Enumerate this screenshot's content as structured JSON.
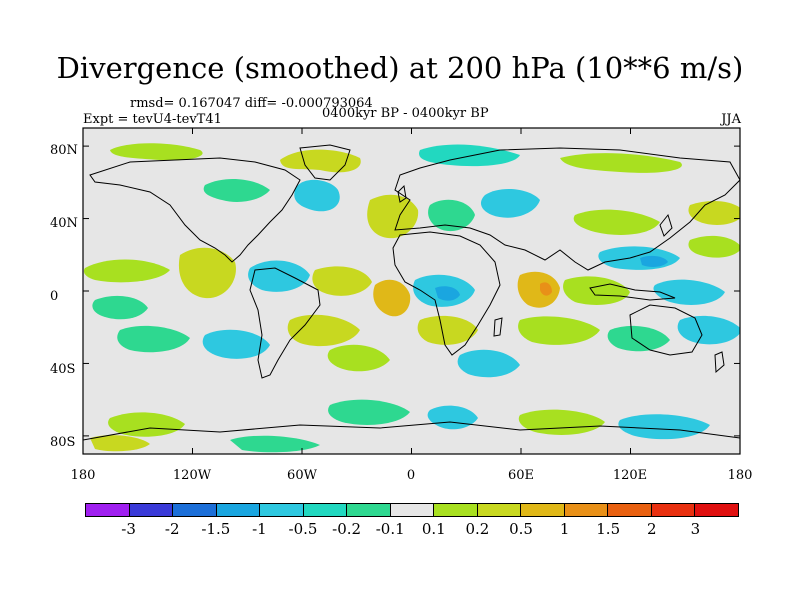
{
  "title": "Divergence (smoothed) at 200 hPa (10**6 m/s)",
  "stats": "rmsd= 0.167047 diff= -0.000793064",
  "expt": "Expt = tevU4-tevT41",
  "period": "0400kyr BP - 0400kyr BP",
  "season": "JJA",
  "map": {
    "lon_range": [
      -180,
      180
    ],
    "lat_range": [
      -90,
      90
    ],
    "projection": "cylindrical equidistant",
    "y_ticks": [
      "80N",
      "40N",
      "0",
      "40S",
      "80S"
    ],
    "x_ticks": [
      "180",
      "120W",
      "60W",
      "0",
      "60E",
      "120E",
      "180"
    ]
  },
  "colorbar": {
    "levels": [
      "-3",
      "-2",
      "-1.5",
      "-1",
      "-0.5",
      "-0.2",
      "-0.1",
      "0.1",
      "0.2",
      "0.5",
      "1",
      "1.5",
      "2",
      "3"
    ],
    "colors": [
      "#a020f0",
      "#3a3ad8",
      "#1c6fd8",
      "#1aa6e0",
      "#2ec8e0",
      "#22d8c0",
      "#2ed890",
      "#e6e6e6",
      "#a8e020",
      "#c8d820",
      "#e0b818",
      "#e89018",
      "#e86010",
      "#e83010",
      "#e01010"
    ]
  },
  "chart_data": {
    "type": "heatmap",
    "title": "Divergence (smoothed) at 200 hPa (10**6 m/s)",
    "x_unit": "longitude (deg)",
    "y_unit": "latitude (deg)",
    "xlim": [
      -180,
      180
    ],
    "ylim": [
      -90,
      90
    ],
    "levels": [
      -3,
      -2,
      -1.5,
      -1,
      -0.5,
      -0.2,
      -0.1,
      0.1,
      0.2,
      0.5,
      1,
      1.5,
      2,
      3
    ],
    "features": [
      {
        "lon": -100,
        "lat": 58,
        "value": -0.3
      },
      {
        "lon": -150,
        "lat": 20,
        "value": 0.25
      },
      {
        "lon": -118,
        "lat": 8,
        "value": 0.3
      },
      {
        "lon": -70,
        "lat": 0,
        "value": -0.3
      },
      {
        "lon": -40,
        "lat": 40,
        "value": 0.3
      },
      {
        "lon": -35,
        "lat": 45,
        "value": -0.3
      },
      {
        "lon": -20,
        "lat": 5,
        "value": 0.6
      },
      {
        "lon": -5,
        "lat": 0,
        "value": -0.3
      },
      {
        "lon": 20,
        "lat": 0,
        "value": -0.4
      },
      {
        "lon": 45,
        "lat": 2,
        "value": 0.6
      },
      {
        "lon": 75,
        "lat": 0,
        "value": 0.4
      },
      {
        "lon": 110,
        "lat": 10,
        "value": 0.4
      },
      {
        "lon": 135,
        "lat": 20,
        "value": -0.35
      },
      {
        "lon": 160,
        "lat": 0,
        "value": -0.3
      },
      {
        "lon": -130,
        "lat": -30,
        "value": -0.3
      },
      {
        "lon": -60,
        "lat": -30,
        "value": 0.4
      },
      {
        "lon": 20,
        "lat": -30,
        "value": 0.3
      },
      {
        "lon": 100,
        "lat": -35,
        "value": 0.3
      },
      {
        "lon": 140,
        "lat": -70,
        "value": -0.3
      },
      {
        "lon": -150,
        "lat": -75,
        "value": 0.25
      }
    ]
  }
}
